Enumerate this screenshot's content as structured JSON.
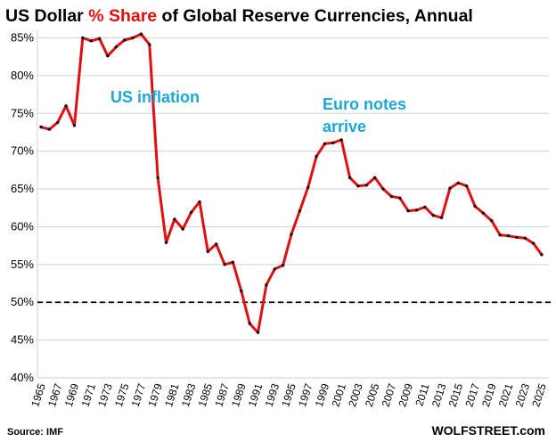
{
  "chart_data": {
    "type": "line",
    "title": {
      "part1": "US Dollar ",
      "highlight": "% Share",
      "part2": " of Global Reserve Currencies, Annual"
    },
    "xlabel": "",
    "ylabel": "",
    "ylim": [
      40,
      86
    ],
    "xlim": [
      1965,
      2025
    ],
    "y_ticks": [
      40,
      45,
      50,
      55,
      60,
      65,
      70,
      75,
      80,
      85
    ],
    "y_tick_labels": [
      "40%",
      "45%",
      "50%",
      "55%",
      "60%",
      "65%",
      "70%",
      "75%",
      "80%",
      "85%"
    ],
    "x_ticks": [
      "1965",
      "1967",
      "1969",
      "1971",
      "1973",
      "1975",
      "1977",
      "1979",
      "1981",
      "1983",
      "1985",
      "1987",
      "1989",
      "1991",
      "1993",
      "1995",
      "1997",
      "1999",
      "2001",
      "2003",
      "2005",
      "2007",
      "2009",
      "2011",
      "2013",
      "2015",
      "2017",
      "2019",
      "2021",
      "2023",
      "2025"
    ],
    "series": [
      {
        "name": "US Dollar % Share",
        "x": [
          1965,
          1966,
          1967,
          1968,
          1969,
          1970,
          1971,
          1972,
          1973,
          1974,
          1975,
          1976,
          1977,
          1978,
          1979,
          1980,
          1981,
          1982,
          1983,
          1984,
          1985,
          1986,
          1987,
          1988,
          1989,
          1990,
          1991,
          1992,
          1993,
          1994,
          1995,
          1996,
          1997,
          1998,
          1999,
          2000,
          2001,
          2002,
          2003,
          2004,
          2005,
          2006,
          2007,
          2008,
          2009,
          2010,
          2011,
          2012,
          2013,
          2014,
          2015,
          2016,
          2017,
          2018,
          2019,
          2020,
          2021,
          2022,
          2023,
          2024,
          2025
        ],
        "values": [
          73.2,
          72.9,
          73.8,
          76.0,
          73.4,
          85.0,
          84.6,
          84.9,
          82.6,
          83.8,
          84.7,
          85.0,
          85.5,
          84.1,
          66.5,
          57.9,
          61.0,
          59.7,
          61.9,
          63.3,
          56.7,
          57.7,
          55.0,
          55.3,
          51.5,
          47.2,
          46.0,
          52.3,
          54.4,
          54.9,
          59.0,
          62.1,
          65.2,
          69.3,
          71.0,
          71.1,
          71.5,
          66.5,
          65.4,
          65.5,
          66.5,
          65.0,
          64.0,
          63.8,
          62.1,
          62.2,
          62.6,
          61.5,
          61.2,
          65.1,
          65.8,
          65.4,
          62.7,
          61.8,
          60.8,
          58.9,
          58.8,
          58.6,
          58.5,
          57.8,
          56.3
        ]
      }
    ],
    "reference_line": {
      "value": 50,
      "style": "dashed"
    },
    "annotations": [
      {
        "text": "US inflation"
      },
      {
        "line1": "Euro notes",
        "line2": "arrive"
      }
    ],
    "colors": {
      "line": "#e01010",
      "marker": "#111111",
      "annotation": "#1ea6d6",
      "highlight": "#e01010",
      "grid": "#c8d2dc"
    },
    "legend": "none",
    "grid": true
  },
  "footer": {
    "source": "Source: IMF",
    "brand": "WOLFSTREET.com"
  }
}
